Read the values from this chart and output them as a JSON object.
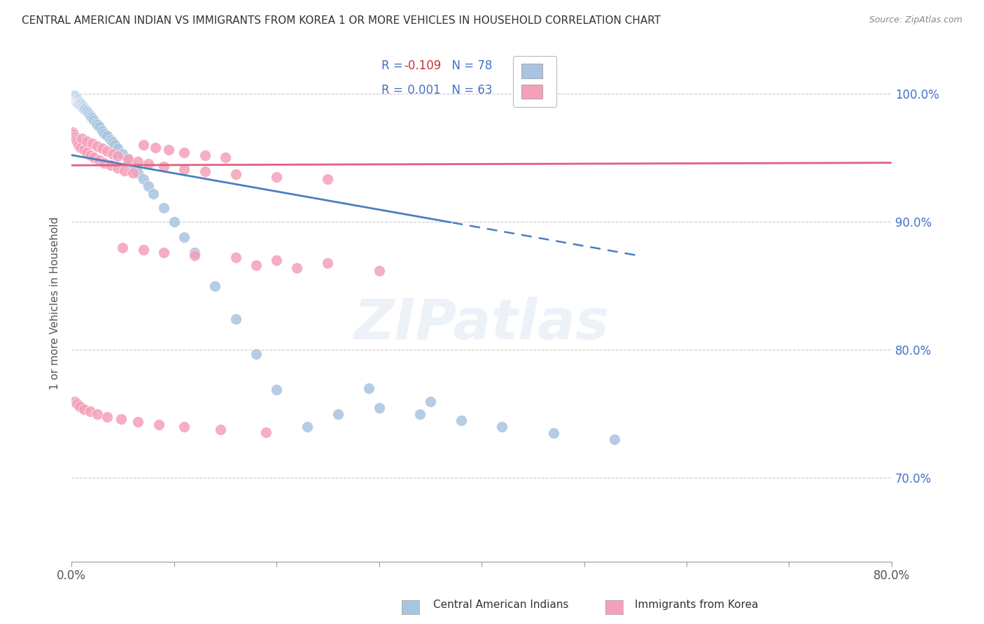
{
  "title": "CENTRAL AMERICAN INDIAN VS IMMIGRANTS FROM KOREA 1 OR MORE VEHICLES IN HOUSEHOLD CORRELATION CHART",
  "source": "Source: ZipAtlas.com",
  "ylabel": "1 or more Vehicles in Household",
  "ytick_labels": [
    "70.0%",
    "80.0%",
    "90.0%",
    "100.0%"
  ],
  "ytick_values": [
    0.7,
    0.8,
    0.9,
    1.0
  ],
  "legend_label1": "Central American Indians",
  "legend_label2": "Immigrants from Korea",
  "color_blue": "#a8c4e0",
  "color_pink": "#f4a0b8",
  "color_blue_line": "#4a7fc0",
  "color_pink_line": "#e06080",
  "color_legend_text": "#4472c4",
  "color_right_axis": "#4472c4",
  "xmin": 0.0,
  "xmax": 0.8,
  "ymin": 0.635,
  "ymax": 1.038,
  "blue_scatter_x": [
    0.001,
    0.001,
    0.001,
    0.002,
    0.002,
    0.002,
    0.003,
    0.003,
    0.003,
    0.003,
    0.004,
    0.004,
    0.004,
    0.005,
    0.005,
    0.005,
    0.006,
    0.006,
    0.006,
    0.006,
    0.007,
    0.007,
    0.007,
    0.008,
    0.008,
    0.008,
    0.009,
    0.009,
    0.01,
    0.01,
    0.011,
    0.011,
    0.012,
    0.012,
    0.013,
    0.014,
    0.015,
    0.016,
    0.017,
    0.018,
    0.019,
    0.02,
    0.022,
    0.024,
    0.025,
    0.027,
    0.03,
    0.032,
    0.035,
    0.038,
    0.04,
    0.042,
    0.045,
    0.05,
    0.055,
    0.06,
    0.065,
    0.07,
    0.075,
    0.08,
    0.09,
    0.1,
    0.11,
    0.12,
    0.14,
    0.16,
    0.18,
    0.2,
    0.23,
    0.26,
    0.3,
    0.34,
    0.38,
    0.42,
    0.47,
    0.53,
    0.29,
    0.35
  ],
  "blue_scatter_y": [
    0.998,
    0.997,
    0.996,
    0.998,
    0.997,
    0.996,
    0.998,
    0.997,
    0.996,
    0.995,
    0.997,
    0.996,
    0.995,
    0.996,
    0.995,
    0.994,
    0.995,
    0.994,
    0.993,
    0.992,
    0.994,
    0.993,
    0.992,
    0.993,
    0.992,
    0.991,
    0.992,
    0.991,
    0.991,
    0.99,
    0.99,
    0.989,
    0.989,
    0.988,
    0.988,
    0.987,
    0.986,
    0.985,
    0.984,
    0.983,
    0.982,
    0.981,
    0.979,
    0.977,
    0.976,
    0.974,
    0.971,
    0.969,
    0.967,
    0.964,
    0.962,
    0.96,
    0.957,
    0.953,
    0.948,
    0.943,
    0.938,
    0.933,
    0.928,
    0.922,
    0.911,
    0.9,
    0.888,
    0.876,
    0.85,
    0.824,
    0.797,
    0.769,
    0.74,
    0.75,
    0.755,
    0.75,
    0.745,
    0.74,
    0.735,
    0.73,
    0.77,
    0.76
  ],
  "pink_scatter_x": [
    0.001,
    0.002,
    0.003,
    0.004,
    0.005,
    0.007,
    0.009,
    0.012,
    0.015,
    0.018,
    0.022,
    0.027,
    0.032,
    0.038,
    0.045,
    0.052,
    0.06,
    0.07,
    0.082,
    0.095,
    0.11,
    0.13,
    0.15,
    0.01,
    0.015,
    0.02,
    0.025,
    0.03,
    0.035,
    0.04,
    0.045,
    0.055,
    0.065,
    0.075,
    0.09,
    0.11,
    0.13,
    0.16,
    0.2,
    0.25,
    0.05,
    0.07,
    0.09,
    0.12,
    0.16,
    0.2,
    0.25,
    0.18,
    0.22,
    0.3,
    0.003,
    0.005,
    0.008,
    0.012,
    0.018,
    0.025,
    0.035,
    0.048,
    0.065,
    0.085,
    0.11,
    0.145,
    0.19
  ],
  "pink_scatter_y": [
    0.97,
    0.968,
    0.966,
    0.964,
    0.962,
    0.96,
    0.958,
    0.956,
    0.954,
    0.952,
    0.95,
    0.948,
    0.946,
    0.944,
    0.942,
    0.94,
    0.938,
    0.96,
    0.958,
    0.956,
    0.954,
    0.952,
    0.95,
    0.965,
    0.963,
    0.961,
    0.959,
    0.957,
    0.955,
    0.953,
    0.951,
    0.949,
    0.947,
    0.945,
    0.943,
    0.941,
    0.939,
    0.937,
    0.935,
    0.933,
    0.88,
    0.878,
    0.876,
    0.874,
    0.872,
    0.87,
    0.868,
    0.866,
    0.864,
    0.862,
    0.76,
    0.758,
    0.756,
    0.754,
    0.752,
    0.75,
    0.748,
    0.746,
    0.744,
    0.742,
    0.74,
    0.738,
    0.736
  ],
  "blue_line_x0": 0.0,
  "blue_line_y0": 0.952,
  "blue_line_x1": 0.55,
  "blue_line_y1": 0.874,
  "blue_line_solid_end": 0.37,
  "pink_line_x0": 0.0,
  "pink_line_y0": 0.944,
  "pink_line_x1": 0.8,
  "pink_line_y1": 0.946
}
